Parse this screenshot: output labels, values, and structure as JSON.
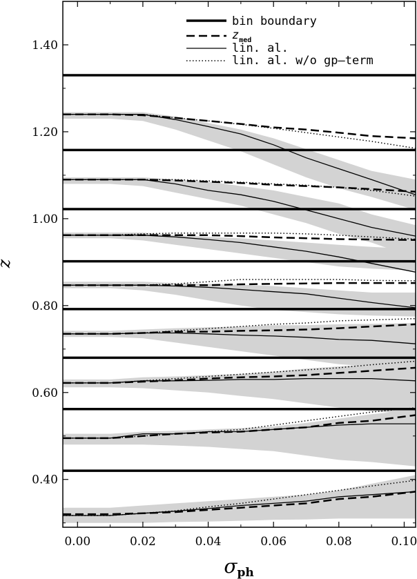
{
  "chart_data": {
    "type": "line",
    "xlabel": "σ",
    "xlabel_sub": "ph",
    "ylabel": "z",
    "xlim": [
      -0.0045,
      0.1035
    ],
    "ylim": [
      0.29,
      1.5
    ],
    "xticks": [
      0.0,
      0.02,
      0.04,
      0.06,
      0.08,
      0.1
    ],
    "xtick_labels": [
      "0.00",
      "0.02",
      "0.04",
      "0.06",
      "0.08",
      "0.10"
    ],
    "yticks": [
      0.4,
      0.6,
      0.8,
      1.0,
      1.2,
      1.4
    ],
    "ytick_labels": [
      "0.40",
      "0.60",
      "0.80",
      "1.00",
      "1.20",
      "1.40"
    ],
    "legend": {
      "position": "top-right",
      "entries": [
        {
          "label": "bin boundary",
          "style": "thick"
        },
        {
          "label": "z",
          "label_sub": "med",
          "style": "dashed"
        },
        {
          "label": "lin. al.",
          "style": "solid"
        },
        {
          "label": "lin. al. w/o gp–term",
          "style": "dotted"
        }
      ]
    },
    "bin_boundaries": [
      0.42,
      0.562,
      0.68,
      0.792,
      0.902,
      1.022,
      1.158,
      1.33
    ],
    "x": [
      -0.0045,
      0.01,
      0.02,
      0.03,
      0.04,
      0.05,
      0.06,
      0.07,
      0.08,
      0.09,
      0.1035
    ],
    "bins": [
      {
        "zmed": [
          0.32,
          0.32,
          0.322,
          0.325,
          0.33,
          0.335,
          0.34,
          0.345,
          0.355,
          0.36,
          0.372
        ],
        "linal": [
          0.317,
          0.317,
          0.322,
          0.327,
          0.333,
          0.34,
          0.345,
          0.35,
          0.36,
          0.365,
          0.372
        ],
        "nogp": [
          0.317,
          0.317,
          0.322,
          0.328,
          0.337,
          0.345,
          0.355,
          0.365,
          0.375,
          0.385,
          0.398
        ],
        "band_low": [
          0.3,
          0.3,
          0.3,
          0.302,
          0.303,
          0.305,
          0.307,
          0.308,
          0.31,
          0.31,
          0.31
        ],
        "band_high": [
          0.335,
          0.335,
          0.34,
          0.345,
          0.35,
          0.355,
          0.36,
          0.365,
          0.375,
          0.39,
          0.41
        ]
      },
      {
        "zmed": [
          0.495,
          0.495,
          0.5,
          0.505,
          0.508,
          0.51,
          0.515,
          0.52,
          0.53,
          0.535,
          0.548
        ],
        "linal": [
          0.495,
          0.495,
          0.505,
          0.505,
          0.51,
          0.51,
          0.515,
          0.52,
          0.525,
          0.528,
          0.528
        ],
        "nogp": [
          0.495,
          0.495,
          0.5,
          0.505,
          0.51,
          0.515,
          0.525,
          0.535,
          0.545,
          0.555,
          0.565
        ],
        "band_low": [
          0.48,
          0.48,
          0.48,
          0.478,
          0.475,
          0.47,
          0.465,
          0.455,
          0.445,
          0.44,
          0.43
        ],
        "band_high": [
          0.505,
          0.505,
          0.51,
          0.512,
          0.515,
          0.518,
          0.522,
          0.53,
          0.54,
          0.55,
          0.56
        ]
      },
      {
        "zmed": [
          0.622,
          0.622,
          0.625,
          0.628,
          0.632,
          0.635,
          0.637,
          0.64,
          0.645,
          0.65,
          0.657
        ],
        "linal": [
          0.622,
          0.622,
          0.627,
          0.627,
          0.628,
          0.63,
          0.63,
          0.632,
          0.632,
          0.632,
          0.627
        ],
        "nogp": [
          0.622,
          0.622,
          0.627,
          0.632,
          0.637,
          0.642,
          0.647,
          0.652,
          0.657,
          0.664,
          0.672
        ],
        "band_low": [
          0.612,
          0.612,
          0.61,
          0.605,
          0.6,
          0.592,
          0.585,
          0.575,
          0.565,
          0.557,
          0.55
        ],
        "band_high": [
          0.63,
          0.63,
          0.635,
          0.637,
          0.64,
          0.643,
          0.648,
          0.655,
          0.66,
          0.665,
          0.672
        ]
      },
      {
        "zmed": [
          0.735,
          0.735,
          0.737,
          0.74,
          0.74,
          0.742,
          0.743,
          0.745,
          0.748,
          0.752,
          0.757
        ],
        "linal": [
          0.735,
          0.735,
          0.737,
          0.737,
          0.735,
          0.732,
          0.73,
          0.727,
          0.722,
          0.72,
          0.712
        ],
        "nogp": [
          0.735,
          0.735,
          0.737,
          0.742,
          0.747,
          0.752,
          0.757,
          0.76,
          0.765,
          0.767,
          0.77
        ],
        "band_low": [
          0.728,
          0.728,
          0.725,
          0.715,
          0.705,
          0.695,
          0.685,
          0.675,
          0.665,
          0.66,
          0.66
        ],
        "band_high": [
          0.742,
          0.742,
          0.745,
          0.748,
          0.75,
          0.752,
          0.755,
          0.755,
          0.757,
          0.758,
          0.76
        ]
      },
      {
        "zmed": [
          0.847,
          0.847,
          0.847,
          0.847,
          0.847,
          0.849,
          0.85,
          0.851,
          0.852,
          0.852,
          0.852
        ],
        "linal": [
          0.847,
          0.847,
          0.847,
          0.845,
          0.842,
          0.837,
          0.832,
          0.827,
          0.817,
          0.807,
          0.795
        ],
        "nogp": [
          0.847,
          0.847,
          0.847,
          0.85,
          0.855,
          0.86,
          0.86,
          0.86,
          0.86,
          0.858,
          0.857
        ],
        "band_low": [
          0.84,
          0.84,
          0.835,
          0.825,
          0.812,
          0.8,
          0.79,
          0.785,
          0.78,
          0.777,
          0.775
        ],
        "band_high": [
          0.855,
          0.855,
          0.855,
          0.852,
          0.85,
          0.848,
          0.845,
          0.84,
          0.835,
          0.83,
          0.83
        ]
      },
      {
        "zmed": [
          0.962,
          0.962,
          0.962,
          0.962,
          0.962,
          0.96,
          0.957,
          0.955,
          0.953,
          0.952,
          0.951
        ],
        "linal": [
          0.962,
          0.962,
          0.962,
          0.958,
          0.952,
          0.945,
          0.935,
          0.925,
          0.912,
          0.897,
          0.877
        ],
        "nogp": [
          0.962,
          0.962,
          0.965,
          0.967,
          0.967,
          0.967,
          0.967,
          0.965,
          0.962,
          0.958,
          0.953
        ],
        "band_low": [
          0.955,
          0.955,
          0.95,
          0.94,
          0.93,
          0.92,
          0.91,
          0.9,
          0.89,
          0.885,
          0.88
        ],
        "band_high": [
          0.968,
          0.968,
          0.968,
          0.962,
          0.958,
          0.955,
          0.95,
          0.945,
          0.94,
          0.935,
          0.93
        ]
      },
      {
        "zmed": [
          1.09,
          1.09,
          1.09,
          1.088,
          1.085,
          1.082,
          1.078,
          1.075,
          1.072,
          1.068,
          1.062
        ],
        "linal": [
          1.09,
          1.09,
          1.09,
          1.08,
          1.065,
          1.055,
          1.04,
          1.02,
          1.0,
          0.98,
          0.96
        ],
        "nogp": [
          1.09,
          1.09,
          1.09,
          1.09,
          1.087,
          1.084,
          1.08,
          1.077,
          1.072,
          1.065,
          1.052
        ],
        "band_low": [
          1.08,
          1.08,
          1.075,
          1.06,
          1.045,
          1.03,
          1.01,
          0.99,
          0.965,
          0.945,
          0.91
        ],
        "band_high": [
          1.095,
          1.095,
          1.095,
          1.09,
          1.085,
          1.075,
          1.065,
          1.05,
          1.035,
          1.01,
          0.985
        ]
      },
      {
        "zmed": [
          1.24,
          1.24,
          1.238,
          1.232,
          1.225,
          1.218,
          1.21,
          1.205,
          1.198,
          1.19,
          1.185
        ],
        "linal": [
          1.24,
          1.24,
          1.24,
          1.228,
          1.212,
          1.195,
          1.17,
          1.14,
          1.115,
          1.09,
          1.055
        ],
        "nogp": [
          1.24,
          1.24,
          1.24,
          1.232,
          1.225,
          1.217,
          1.208,
          1.198,
          1.188,
          1.178,
          1.162
        ],
        "band_low": [
          1.23,
          1.23,
          1.225,
          1.205,
          1.18,
          1.155,
          1.125,
          1.095,
          1.07,
          1.05,
          1.02
        ],
        "band_high": [
          1.245,
          1.245,
          1.245,
          1.235,
          1.22,
          1.205,
          1.185,
          1.16,
          1.135,
          1.11,
          1.09
        ]
      }
    ]
  }
}
